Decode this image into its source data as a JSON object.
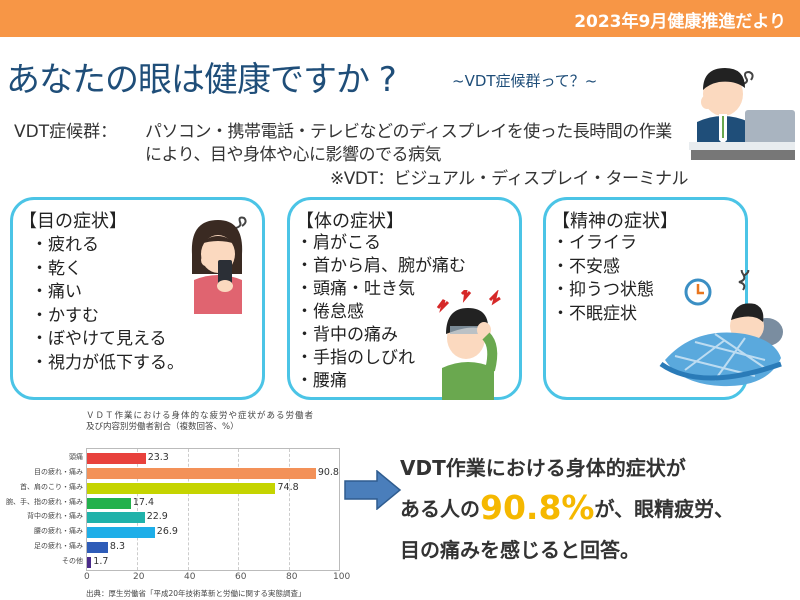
{
  "header": {
    "banner_title": "2023年9月健康推進だより",
    "banner_color": "#f79646"
  },
  "title": {
    "main": "あなたの眼は健康ですか ?",
    "sub": "~VDT症候群って？~"
  },
  "definition": {
    "label": "VDT症候群：",
    "line1": "パソコン・携帯電話・テレビなどのディスプレイを使った長時間の作業",
    "line2": "により、目や身体や心に影響のでる病気",
    "note": "※VDT：ビジュアル・ディスプレイ・ターミナル"
  },
  "cards": {
    "eye": {
      "heading": "【目の症状】",
      "items": [
        "・疲れる",
        "・乾く",
        "・痛い",
        "・かすむ",
        "・ぼやけて見える",
        "・視力が低下する。"
      ]
    },
    "body": {
      "heading": "【体の症状】",
      "items": [
        "・肩がこる",
        "・首から肩、腕が痛む",
        "・頭痛・吐き気",
        "・倦怠感",
        "・背中の痛み",
        "・手指のしびれ",
        "・腰痛"
      ]
    },
    "mind": {
      "heading": "【精神の症状】",
      "items": [
        "・イライラ",
        "・不安感",
        "・抑うつ状態",
        "・不眠症状"
      ]
    },
    "border_color": "#4bc4e6"
  },
  "illustrations": {
    "office_worker": "tired-office-worker-illustration",
    "girl_phone": "girl-rubbing-eye-with-phone-illustration",
    "headache": "boy-with-headache-illustration",
    "sleepless": "sleepless-man-in-bed-illustration"
  },
  "chart_data": {
    "type": "bar",
    "orientation": "horizontal",
    "title": "ＶＤＴ作業における身体的な疲労や症状がある労働者",
    "title_line2": "及び内容別労働者割合（複数回答、%）",
    "categories": [
      "頭痛",
      "目の疲れ・痛み",
      "首、肩のこり・痛み",
      "腕、手、指の疲れ・痛み",
      "背中の疲れ・痛み",
      "腰の疲れ・痛み",
      "足の疲れ・痛み",
      "その他"
    ],
    "values": [
      23.3,
      90.8,
      74.8,
      17.4,
      22.9,
      26.9,
      8.3,
      1.7
    ],
    "value_labels": [
      "23.3",
      "90.8",
      "74.8",
      "17.4",
      "22.9",
      "26.9",
      "8.3",
      "1.7"
    ],
    "colors": [
      "#e8413c",
      "#f39158",
      "#c5d400",
      "#22b14c",
      "#20b2aa",
      "#1eaee8",
      "#2e5cb8",
      "#4a2a8a"
    ],
    "xlim": [
      0,
      100
    ],
    "xticks": [
      "0",
      "20",
      "40",
      "60",
      "80",
      "100"
    ],
    "grid": true,
    "xlabel": "",
    "ylabel": "",
    "source": "出典：厚生労働省「平成20年技術革新と労働に関する実態調査」"
  },
  "summary": {
    "line1": "VDT作業における身体的症状が",
    "line2_pre": "ある人の",
    "highlight": "90.8%",
    "line2_post": "が、眼精疲労、",
    "line3": "目の痛みを感じると回答。",
    "highlight_color": "#f5b800"
  }
}
